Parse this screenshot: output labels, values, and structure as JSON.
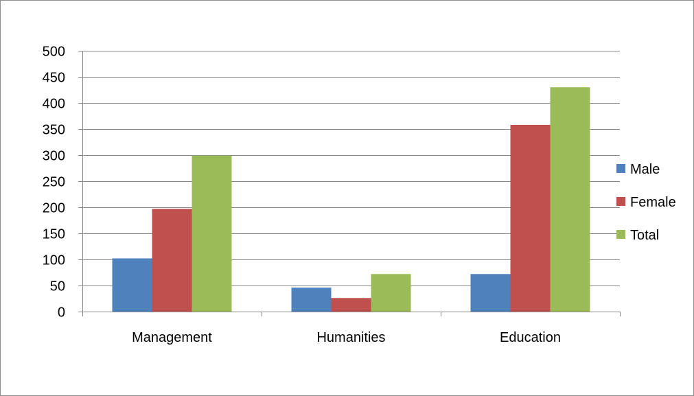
{
  "chart_data": {
    "type": "bar",
    "title": "",
    "xlabel": "",
    "ylabel": "",
    "categories": [
      "Management",
      "Humanities",
      "Education"
    ],
    "series": [
      {
        "name": "Male",
        "values": [
          102,
          46,
          72
        ],
        "color": "#4f81bd"
      },
      {
        "name": "Female",
        "values": [
          197,
          26,
          358
        ],
        "color": "#c0504d"
      },
      {
        "name": "Total",
        "values": [
          299,
          72,
          430
        ],
        "color": "#9bbb59"
      }
    ],
    "ylim": [
      0,
      500
    ],
    "yticks": [
      0,
      50,
      100,
      150,
      200,
      250,
      300,
      350,
      400,
      450,
      500
    ],
    "grid": true,
    "legend_position": "right"
  }
}
